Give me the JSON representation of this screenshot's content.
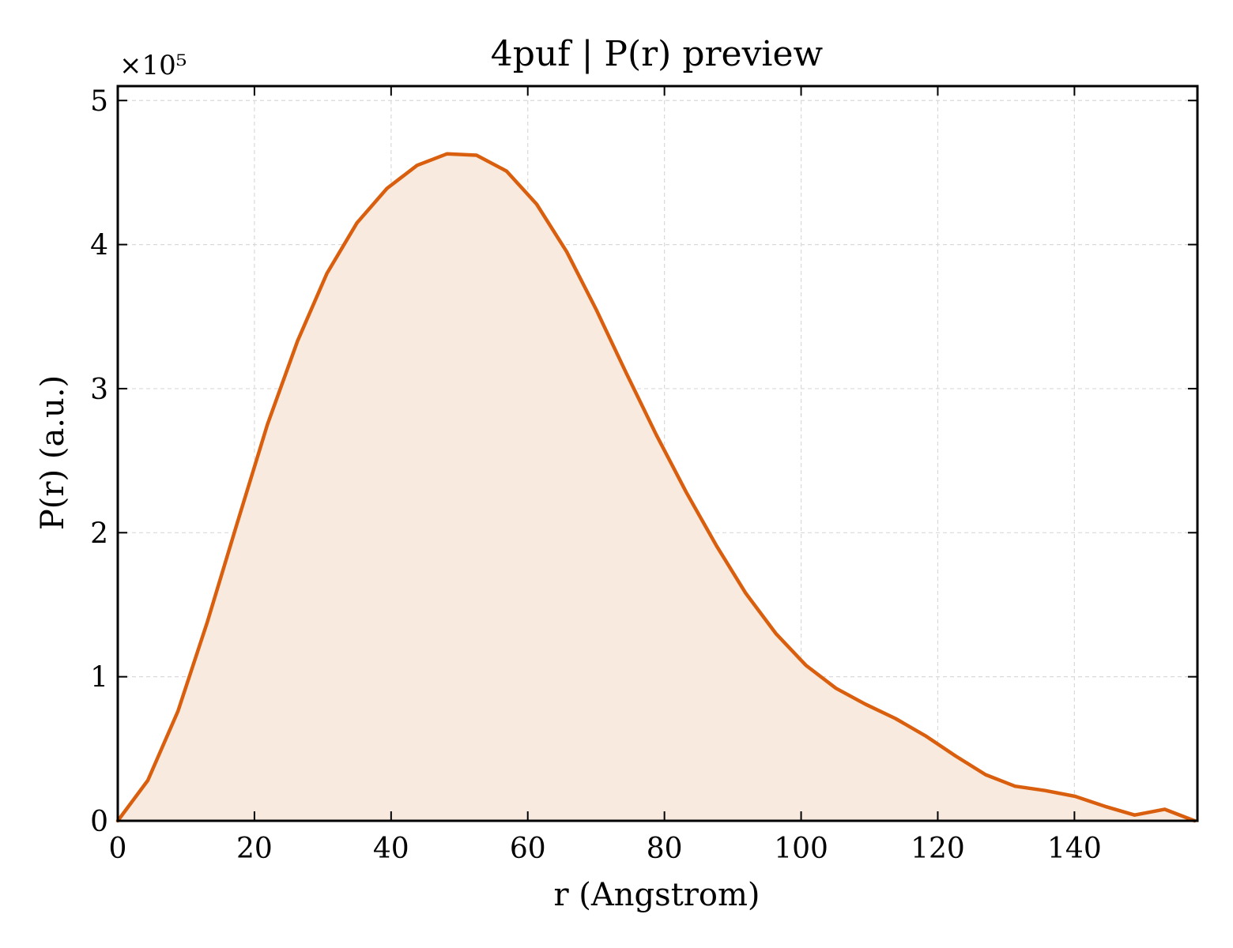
{
  "chart_data": {
    "type": "area",
    "title": "4puf | P(r) preview",
    "xlabel": "r (Angstrom)",
    "ylabel": "P(r) (a.u.)",
    "y_scale_note": "×10⁵",
    "xlim": [
      0,
      158
    ],
    "ylim": [
      0,
      510000
    ],
    "xticks": [
      0,
      20,
      40,
      60,
      80,
      100,
      120,
      140
    ],
    "yticks": [
      0,
      100000,
      200000,
      300000,
      400000,
      500000
    ],
    "ytick_labels": [
      "0",
      "1",
      "2",
      "3",
      "4",
      "5"
    ],
    "grid": true,
    "line_color": "#d95f0e",
    "fill_color": "#f9eadf",
    "series": [
      {
        "x": [
          0,
          4.4,
          8.8,
          13.1,
          17.5,
          21.9,
          26.3,
          30.6,
          35.0,
          39.4,
          43.8,
          48.2,
          52.5,
          56.9,
          61.3,
          65.7,
          70.0,
          74.4,
          78.8,
          83.2,
          87.6,
          91.9,
          96.3,
          100.7,
          105.1,
          109.4,
          113.8,
          118.2,
          122.6,
          127.0,
          131.3,
          135.7,
          140.1,
          144.5,
          148.8,
          153.2,
          157.6
        ],
        "y": [
          0,
          28000,
          76000,
          138000,
          207000,
          275000,
          333000,
          380000,
          415000,
          439000,
          455000,
          463000,
          462000,
          451000,
          428000,
          395000,
          355000,
          311000,
          268000,
          228000,
          191000,
          158000,
          130000,
          108000,
          92000,
          81000,
          71000,
          59000,
          45000,
          32000,
          24000,
          21000,
          17000,
          10000,
          4000,
          8000,
          0
        ]
      }
    ]
  }
}
